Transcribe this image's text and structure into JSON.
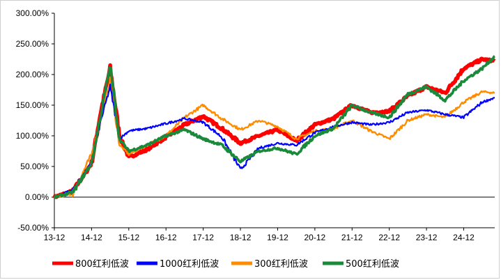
{
  "chart_data": {
    "type": "line",
    "title": "",
    "xlabel": "",
    "ylabel": "",
    "x_tick_labels": [
      "13-12",
      "14-12",
      "15-12",
      "16-12",
      "17-12",
      "18-12",
      "19-12",
      "20-12",
      "21-12",
      "22-12",
      "23-12",
      "24-12"
    ],
    "y_tick_labels": [
      "-50.00%",
      "0.00%",
      "50.00%",
      "100.00%",
      "150.00%",
      "200.00%",
      "250.00%",
      "300.00%"
    ],
    "ylim": [
      -50,
      300
    ],
    "y_unit": "%",
    "legend_position": "bottom",
    "grid": false,
    "x": [
      "13-12",
      "14-06",
      "14-12",
      "15-03",
      "15-06",
      "15-09",
      "15-12",
      "16-06",
      "16-12",
      "17-06",
      "17-12",
      "18-06",
      "18-12",
      "19-06",
      "19-12",
      "20-06",
      "20-12",
      "21-06",
      "21-12",
      "22-06",
      "22-12",
      "23-06",
      "23-12",
      "24-06",
      "24-12",
      "25-06",
      "25-10"
    ],
    "series": [
      {
        "name": "800红利低波",
        "color": "#ff0000",
        "values": [
          0,
          10,
          55,
          140,
          210,
          100,
          65,
          78,
          98,
          118,
          132,
          112,
          88,
          100,
          110,
          92,
          118,
          128,
          150,
          138,
          140,
          165,
          180,
          170,
          210,
          225,
          222
        ]
      },
      {
        "name": "1000红利低波",
        "color": "#0000ff",
        "values": [
          0,
          12,
          55,
          125,
          180,
          95,
          108,
          112,
          120,
          128,
          122,
          98,
          45,
          80,
          88,
          85,
          105,
          115,
          122,
          118,
          122,
          138,
          142,
          135,
          130,
          155,
          162
        ]
      },
      {
        "name": "300红利低波",
        "color": "#ff8c00",
        "values": [
          0,
          5,
          70,
          130,
          190,
          85,
          70,
          85,
          100,
          130,
          150,
          128,
          110,
          125,
          115,
          95,
          108,
          112,
          125,
          108,
          95,
          125,
          135,
          130,
          155,
          172,
          170
        ]
      },
      {
        "name": "500红利低波",
        "color": "#1a8a3a",
        "values": [
          0,
          8,
          55,
          135,
          215,
          95,
          75,
          85,
          100,
          110,
          95,
          85,
          58,
          75,
          80,
          70,
          100,
          112,
          150,
          138,
          130,
          168,
          180,
          158,
          190,
          210,
          230
        ]
      }
    ]
  }
}
